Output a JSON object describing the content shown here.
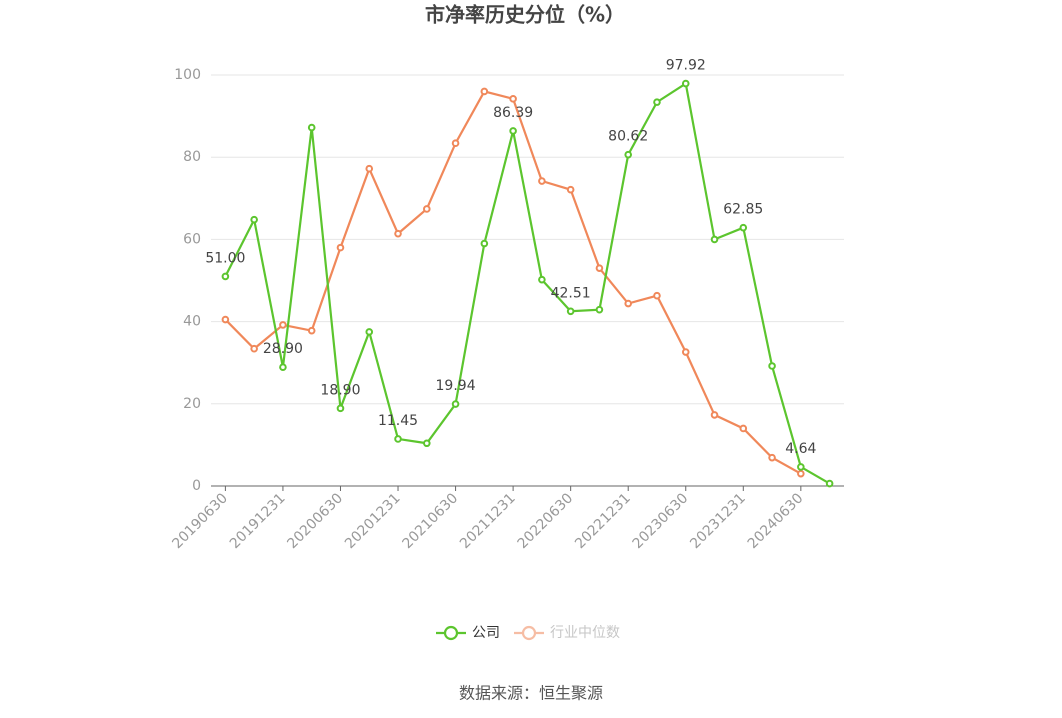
{
  "chart_data": {
    "type": "line",
    "title": "市净率历史分位（%）",
    "categories": [
      "20190630",
      null,
      "20191231",
      null,
      "20200630",
      null,
      "20201231",
      null,
      "20210630",
      null,
      "20211231",
      null,
      "20220630",
      null,
      "20221231",
      null,
      "20230630",
      null,
      "20231231",
      null,
      "20240630",
      null
    ],
    "series": [
      {
        "name": "公司",
        "color": "#5cc52e",
        "values": [
          51.0,
          64.8,
          28.9,
          87.2,
          18.9,
          37.5,
          11.45,
          10.4,
          19.94,
          59.0,
          86.39,
          50.2,
          42.51,
          42.9,
          80.62,
          93.4,
          97.92,
          60.0,
          62.85,
          29.2,
          4.64,
          0.6
        ],
        "value_labels": [
          "51.00",
          null,
          "28.90",
          null,
          "18.90",
          null,
          "11.45",
          null,
          "19.94",
          null,
          "86.39",
          null,
          "42.51",
          null,
          "80.62",
          null,
          "97.92",
          null,
          "62.85",
          null,
          "4.64",
          null
        ]
      },
      {
        "name": "行业中位数",
        "color": "#f0885a",
        "values": [
          40.5,
          33.4,
          39.2,
          37.8,
          58.0,
          77.2,
          61.4,
          67.4,
          83.4,
          96.0,
          94.2,
          74.2,
          72.1,
          53.0,
          44.4,
          46.3,
          32.6,
          17.3,
          14.0,
          6.9,
          3.0,
          null
        ]
      }
    ],
    "ylim": [
      0,
      100
    ],
    "yticks": [
      0,
      20,
      40,
      60,
      80,
      100
    ],
    "grid": true,
    "legend": "bottom",
    "source": "数据来源：恒生聚源"
  }
}
